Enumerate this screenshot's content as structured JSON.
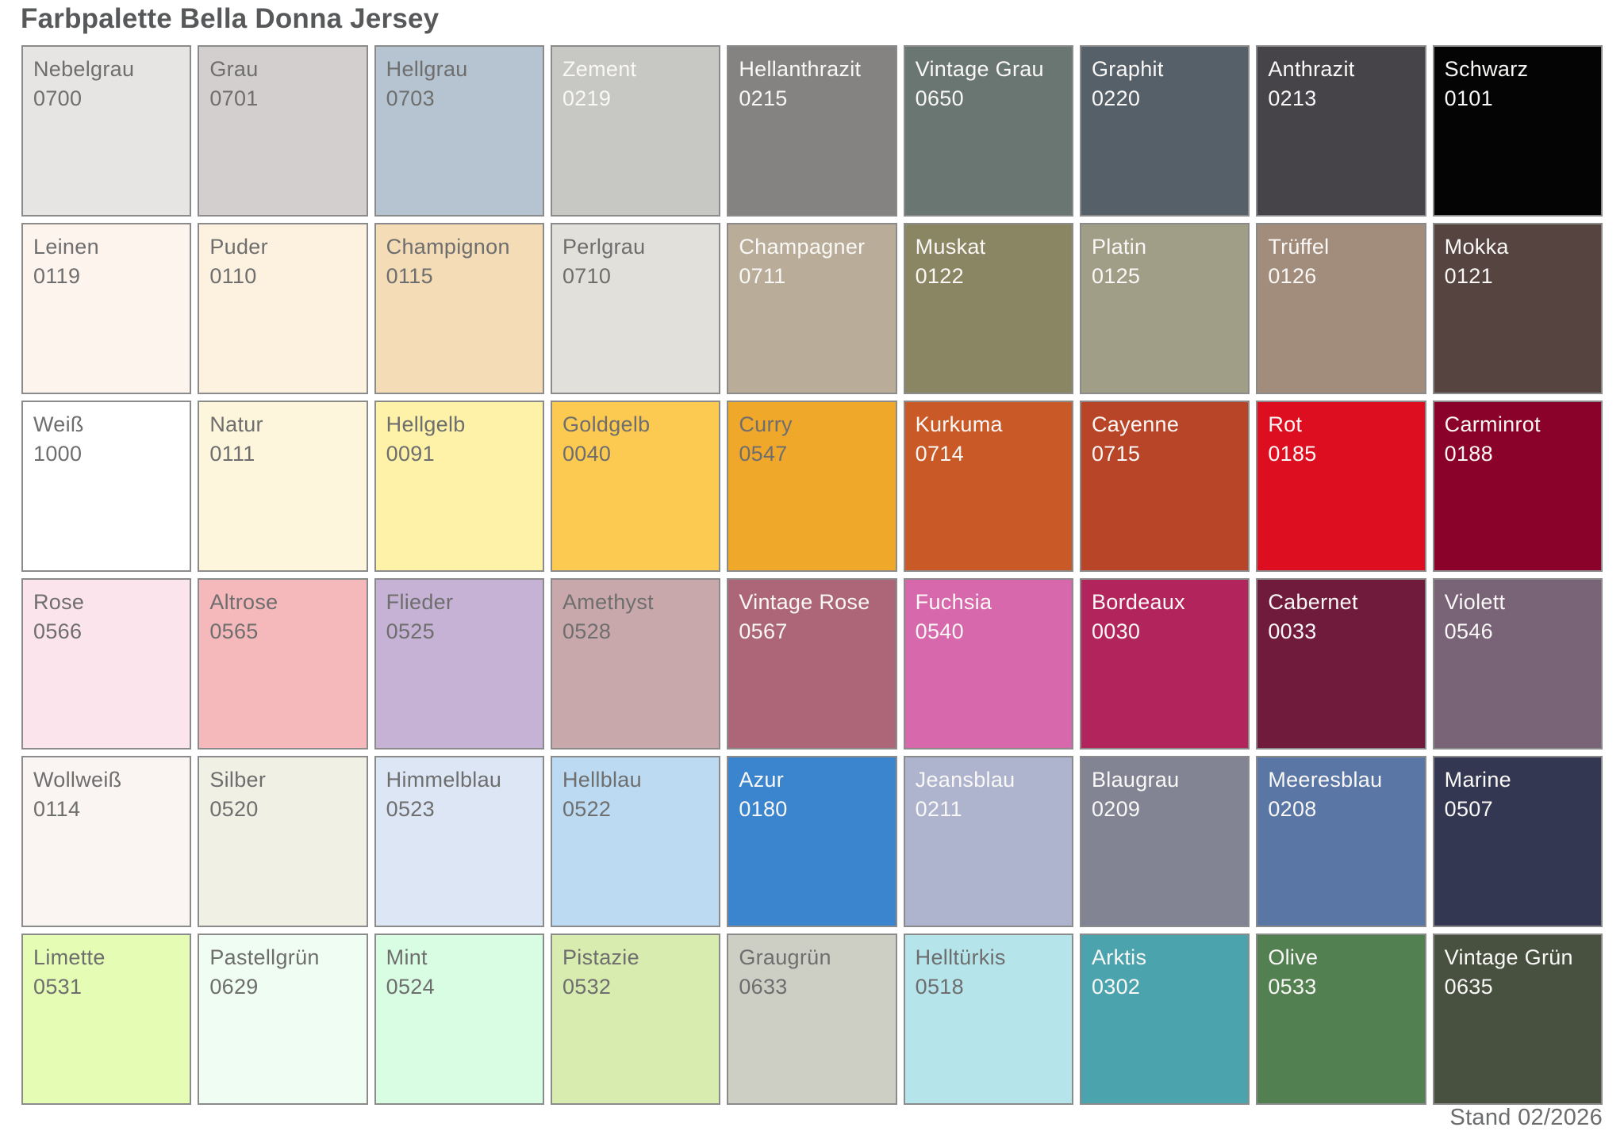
{
  "title": "Farbpalette Bella Donna Jersey",
  "footer": {
    "status": "Stand 02/2026"
  },
  "palette": {
    "columns": 9,
    "rows": 6,
    "swatch_border_color": "#8b8b8b",
    "dark_text_color": "#6e6e6e",
    "light_text_color": "#faf8f6",
    "swatches": [
      {
        "name": "Nebelgrau",
        "code": "0700",
        "color": "#e6e5e3",
        "text": "dark"
      },
      {
        "name": "Grau",
        "code": "0701",
        "color": "#d3cfce",
        "text": "dark"
      },
      {
        "name": "Hellgrau",
        "code": "0703",
        "color": "#b5c4d0",
        "text": "dark"
      },
      {
        "name": "Zement",
        "code": "0219",
        "color": "#c7c7c4",
        "text": "light"
      },
      {
        "name": "Hellanthrazit",
        "code": "0215",
        "color": "#858381",
        "text": "light"
      },
      {
        "name": "Vintage Grau",
        "code": "0650",
        "color": "#6a7672",
        "text": "light"
      },
      {
        "name": "Graphit",
        "code": "0220",
        "color": "#566069",
        "text": "light"
      },
      {
        "name": "Anthrazit",
        "code": "0213",
        "color": "#464349",
        "text": "light"
      },
      {
        "name": "Schwarz",
        "code": "0101",
        "color": "#040404",
        "text": "light"
      },
      {
        "name": "Leinen",
        "code": "0119",
        "color": "#fdf4ee",
        "text": "dark"
      },
      {
        "name": "Puder",
        "code": "0110",
        "color": "#fdf1e0",
        "text": "dark"
      },
      {
        "name": "Champignon",
        "code": "0115",
        "color": "#f3dcb6",
        "text": "dark"
      },
      {
        "name": "Perlgrau",
        "code": "0710",
        "color": "#e2e0da",
        "text": "dark"
      },
      {
        "name": "Champagner",
        "code": "0711",
        "color": "#b9ad9a",
        "text": "light"
      },
      {
        "name": "Muskat",
        "code": "0122",
        "color": "#8a8563",
        "text": "light"
      },
      {
        "name": "Platin",
        "code": "0125",
        "color": "#a19e88",
        "text": "light"
      },
      {
        "name": "Trüffel",
        "code": "0126",
        "color": "#a28d7c",
        "text": "light"
      },
      {
        "name": "Mokka",
        "code": "0121",
        "color": "#564441",
        "text": "light"
      },
      {
        "name": "Weiß",
        "code": "1000",
        "color": "#ffffff",
        "text": "dark"
      },
      {
        "name": "Natur",
        "code": "0111",
        "color": "#fdf6dc",
        "text": "dark"
      },
      {
        "name": "Hellgelb",
        "code": "0091",
        "color": "#fdf2a8",
        "text": "dark"
      },
      {
        "name": "Goldgelb",
        "code": "0040",
        "color": "#fdca51",
        "text": "dark"
      },
      {
        "name": "Curry",
        "code": "0547",
        "color": "#f0a82b",
        "text": "dark"
      },
      {
        "name": "Kurkuma",
        "code": "0714",
        "color": "#c95a27",
        "text": "light"
      },
      {
        "name": "Cayenne",
        "code": "0715",
        "color": "#b94529",
        "text": "light"
      },
      {
        "name": "Rot",
        "code": "0185",
        "color": "#de0e21",
        "text": "light"
      },
      {
        "name": "Carminrot",
        "code": "0188",
        "color": "#8a0129",
        "text": "light"
      },
      {
        "name": "Rose",
        "code": "0566",
        "color": "#fce4ec",
        "text": "dark"
      },
      {
        "name": "Altrose",
        "code": "0565",
        "color": "#f5b9bc",
        "text": "dark"
      },
      {
        "name": "Flieder",
        "code": "0525",
        "color": "#c5b2d4",
        "text": "dark"
      },
      {
        "name": "Amethyst",
        "code": "0528",
        "color": "#c9a8ab",
        "text": "dark"
      },
      {
        "name": "Vintage Rose",
        "code": "0567",
        "color": "#ad6578",
        "text": "light"
      },
      {
        "name": "Fuchsia",
        "code": "0540",
        "color": "#d668ab",
        "text": "light"
      },
      {
        "name": "Bordeaux",
        "code": "0030",
        "color": "#b2255c",
        "text": "light"
      },
      {
        "name": "Cabernet",
        "code": "0033",
        "color": "#701a3c",
        "text": "light"
      },
      {
        "name": "Violett",
        "code": "0546",
        "color": "#796377",
        "text": "light"
      },
      {
        "name": "Wollweiß",
        "code": "0114",
        "color": "#faf4f3",
        "text": "dark"
      },
      {
        "name": "Silber",
        "code": "0520",
        "color": "#f0f1e4",
        "text": "dark"
      },
      {
        "name": "Himmelblau",
        "code": "0523",
        "color": "#dce6f5",
        "text": "dark"
      },
      {
        "name": "Hellblau",
        "code": "0522",
        "color": "#bcdbf2",
        "text": "dark"
      },
      {
        "name": "Azur",
        "code": "0180",
        "color": "#3a85ce",
        "text": "light"
      },
      {
        "name": "Jeansblau",
        "code": "0211",
        "color": "#aeb4cd",
        "text": "light"
      },
      {
        "name": "Blaugrau",
        "code": "0209",
        "color": "#828494",
        "text": "light"
      },
      {
        "name": "Meeresblau",
        "code": "0208",
        "color": "#5a76a5",
        "text": "light"
      },
      {
        "name": "Marine",
        "code": "0507",
        "color": "#343751",
        "text": "light"
      },
      {
        "name": "Limette",
        "code": "0531",
        "color": "#e4fcb3",
        "text": "dark"
      },
      {
        "name": "Pastellgrün",
        "code": "0629",
        "color": "#f0fdf2",
        "text": "dark"
      },
      {
        "name": "Mint",
        "code": "0524",
        "color": "#d9fde3",
        "text": "dark"
      },
      {
        "name": "Pistazie",
        "code": "0532",
        "color": "#d7ecae",
        "text": "dark"
      },
      {
        "name": "Graugrün",
        "code": "0633",
        "color": "#cdcfc5",
        "text": "dark"
      },
      {
        "name": "Helltürkis",
        "code": "0518",
        "color": "#b5e4ea",
        "text": "dark"
      },
      {
        "name": "Arktis",
        "code": "0302",
        "color": "#4ba4ad",
        "text": "light"
      },
      {
        "name": "Olive",
        "code": "0533",
        "color": "#528050",
        "text": "light"
      },
      {
        "name": "Vintage Grün",
        "code": "0635",
        "color": "#485140",
        "text": "light"
      }
    ]
  }
}
